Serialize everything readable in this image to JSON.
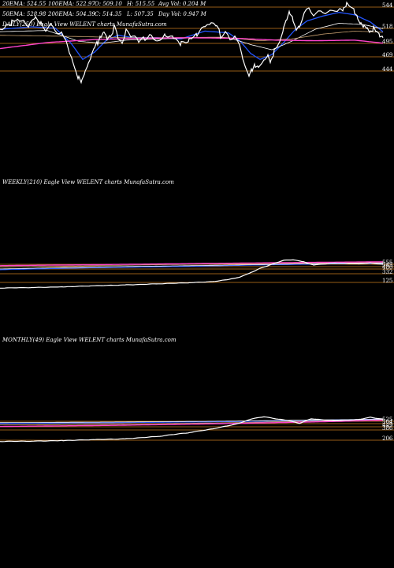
{
  "stats": {
    "row1": [
      "20EMA: 524.55",
      "100EMA: 522.97",
      "O: 509.10",
      "H: 515.55",
      "Avg Vol: 0.204  M"
    ],
    "row2": [
      "50EMA: 528.98",
      "200EMA: 504.39",
      "C: 514.35",
      "L: 507.35",
      "Day Vol: 0.947  M"
    ]
  },
  "colors": {
    "background": "#000000",
    "price": "#ffffff",
    "ema20": "#2255ff",
    "ema50": "#ffffff",
    "ema100": "#c8a070",
    "ema200": "#ff44cc",
    "level_line": "#c87a1e"
  },
  "chart_data": [
    {
      "type": "line",
      "title": "DAILY(250) Eagle  View  WELENT charts MunafaSutra.com",
      "y_tick_labels": [
        "544",
        "518",
        "495",
        "469",
        "444"
      ],
      "ylim": [
        430,
        570
      ],
      "x_count": 250,
      "series": [
        {
          "role": "price",
          "color": "#ffffff",
          "anchors": [
            [
              0,
              528
            ],
            [
              8,
              533
            ],
            [
              15,
              540
            ],
            [
              22,
              545
            ],
            [
              30,
              541
            ],
            [
              38,
              535
            ],
            [
              45,
              548
            ],
            [
              52,
              540
            ],
            [
              58,
              530
            ],
            [
              64,
              536
            ],
            [
              70,
              528
            ],
            [
              78,
              520
            ],
            [
              84,
              512
            ],
            [
              88,
              490
            ],
            [
              92,
              478
            ],
            [
              96,
              462
            ],
            [
              100,
              448
            ],
            [
              104,
              440
            ],
            [
              108,
              456
            ],
            [
              112,
              470
            ],
            [
              116,
              482
            ],
            [
              120,
              495
            ],
            [
              124,
              505
            ],
            [
              128,
              518
            ],
            [
              132,
              525
            ],
            [
              136,
              513
            ],
            [
              140,
              520
            ],
            [
              145,
              530
            ],
            [
              150,
              515
            ],
            [
              155,
              505
            ],
            [
              160,
              525
            ],
            [
              168,
              516
            ],
            [
              176,
              508
            ],
            [
              184,
              514
            ],
            [
              192,
              518
            ],
            [
              200,
              508
            ],
            [
              210,
              522
            ],
            [
              220,
              514
            ],
            [
              230,
              503
            ],
            [
              240,
              512
            ],
            [
              250,
              518
            ],
            [
              260,
              530
            ],
            [
              268,
              538
            ],
            [
              275,
              530
            ],
            [
              280,
              518
            ],
            [
              286,
              524
            ],
            [
              292,
              512
            ],
            [
              298,
              520
            ],
            [
              304,
              498
            ],
            [
              308,
              478
            ],
            [
              312,
              462
            ],
            [
              316,
              448
            ],
            [
              320,
              460
            ],
            [
              324,
              470
            ],
            [
              328,
              468
            ],
            [
              332,
              472
            ],
            [
              336,
              480
            ],
            [
              340,
              488
            ],
            [
              344,
              475
            ],
            [
              348,
              490
            ],
            [
              352,
              498
            ],
            [
              356,
              510
            ],
            [
              360,
              528
            ],
            [
              364,
              542
            ],
            [
              368,
              556
            ],
            [
              372,
              545
            ],
            [
              376,
              528
            ],
            [
              380,
              534
            ],
            [
              386,
              552
            ],
            [
              392,
              560
            ],
            [
              398,
              552
            ],
            [
              404,
              555
            ],
            [
              410,
              558
            ],
            [
              416,
              560
            ],
            [
              422,
              558
            ],
            [
              428,
              562
            ],
            [
              432,
              566
            ],
            [
              436,
              563
            ],
            [
              440,
              570
            ],
            [
              446,
              565
            ],
            [
              450,
              558
            ],
            [
              454,
              550
            ],
            [
              458,
              540
            ],
            [
              462,
              533
            ],
            [
              466,
              530
            ],
            [
              470,
              524
            ],
            [
              474,
              528
            ],
            [
              478,
              520
            ],
            [
              482,
              515
            ],
            [
              486,
              514
            ]
          ]
        },
        {
          "role": "ema20",
          "color": "#2255ff",
          "anchors": [
            [
              0,
              528
            ],
            [
              40,
              532
            ],
            [
              70,
              530
            ],
            [
              90,
              505
            ],
            [
              105,
              478
            ],
            [
              120,
              490
            ],
            [
              135,
              510
            ],
            [
              150,
              518
            ],
            [
              170,
              514
            ],
            [
              200,
              514
            ],
            [
              230,
              512
            ],
            [
              260,
              525
            ],
            [
              290,
              522
            ],
            [
              305,
              508
            ],
            [
              318,
              488
            ],
            [
              330,
              478
            ],
            [
              345,
              486
            ],
            [
              360,
              506
            ],
            [
              375,
              528
            ],
            [
              390,
              542
            ],
            [
              410,
              550
            ],
            [
              430,
              556
            ],
            [
              450,
              552
            ],
            [
              470,
              540
            ],
            [
              486,
              524
            ]
          ]
        },
        {
          "role": "ema50",
          "color": "#ffffff",
          "anchors": [
            [
              0,
              524
            ],
            [
              60,
              526
            ],
            [
              100,
              508
            ],
            [
              130,
              505
            ],
            [
              160,
              510
            ],
            [
              200,
              512
            ],
            [
              250,
              514
            ],
            [
              290,
              514
            ],
            [
              320,
              502
            ],
            [
              345,
              494
            ],
            [
              370,
              508
            ],
            [
              400,
              528
            ],
            [
              430,
              538
            ],
            [
              460,
              536
            ],
            [
              486,
              529
            ]
          ]
        },
        {
          "role": "ema100",
          "color": "#c8a070",
          "anchors": [
            [
              0,
              518
            ],
            [
              100,
              516
            ],
            [
              160,
              514
            ],
            [
              220,
              514
            ],
            [
              280,
              515
            ],
            [
              330,
              509
            ],
            [
              370,
              512
            ],
            [
              410,
              520
            ],
            [
              450,
              525
            ],
            [
              486,
              523
            ]
          ]
        },
        {
          "role": "ema200",
          "color": "#ff44cc",
          "anchors": [
            [
              0,
              496
            ],
            [
              60,
              506
            ],
            [
              120,
              511
            ],
            [
              180,
              513
            ],
            [
              240,
              514
            ],
            [
              300,
              513
            ],
            [
              350,
              510
            ],
            [
              400,
              509
            ],
            [
              450,
              510
            ],
            [
              486,
              505
            ]
          ]
        }
      ],
      "hlines": [
        544,
        518,
        495,
        469,
        444
      ]
    },
    {
      "type": "line",
      "title": "WEEKLY(210) Eagle  View  WELENT charts MunafaSutra.com",
      "y_tick_labels": [
        "555",
        "545",
        "480",
        "332",
        "125"
      ],
      "ylim": [
        60,
        620
      ],
      "x_count": 210,
      "series": [
        {
          "role": "price",
          "color": "#ffffff",
          "anchors": [
            [
              0,
              140
            ],
            [
              40,
              150
            ],
            [
              80,
              160
            ],
            [
              120,
              175
            ],
            [
              160,
              190
            ],
            [
              200,
              205
            ],
            [
              240,
              222
            ],
            [
              270,
              240
            ],
            [
              290,
              270
            ],
            [
              305,
              310
            ],
            [
              318,
              375
            ],
            [
              330,
              440
            ],
            [
              345,
              500
            ],
            [
              360,
              560
            ],
            [
              372,
              570
            ],
            [
              385,
              540
            ],
            [
              398,
              490
            ],
            [
              410,
              505
            ],
            [
              425,
              520
            ],
            [
              440,
              510
            ],
            [
              455,
              505
            ],
            [
              470,
              520
            ],
            [
              486,
              500
            ]
          ]
        },
        {
          "role": "ema20",
          "color": "#2255ff",
          "anchors": [
            [
              0,
              420
            ],
            [
              120,
              450
            ],
            [
              240,
              470
            ],
            [
              320,
              490
            ],
            [
              400,
              505
            ],
            [
              486,
              515
            ]
          ]
        },
        {
          "role": "ema50",
          "color": "#ffffff",
          "anchors": [
            [
              0,
              430
            ],
            [
              120,
              460
            ],
            [
              240,
              480
            ],
            [
              320,
              495
            ],
            [
              400,
              510
            ],
            [
              486,
              520
            ]
          ]
        },
        {
          "role": "ema100",
          "color": "#c8a070",
          "anchors": [
            [
              0,
              460
            ],
            [
              120,
              480
            ],
            [
              240,
              500
            ],
            [
              320,
              510
            ],
            [
              400,
              520
            ],
            [
              486,
              528
            ]
          ]
        },
        {
          "role": "ema200",
          "color": "#ff44cc",
          "anchors": [
            [
              0,
              480
            ],
            [
              120,
              495
            ],
            [
              240,
              510
            ],
            [
              320,
              520
            ],
            [
              400,
              530
            ],
            [
              486,
              538
            ]
          ]
        }
      ],
      "hlines": [
        555,
        545,
        480,
        332,
        125
      ]
    },
    {
      "type": "line",
      "title": "MONTHLY(49) Eagle  View  WELENT charts MunafaSutra.com",
      "y_tick_labels": [
        "525",
        "504",
        "449",
        "386",
        "206"
      ],
      "ylim": [
        150,
        600
      ],
      "x_count": 49,
      "series": [
        {
          "role": "price",
          "color": "#ffffff",
          "anchors": [
            [
              0,
              225
            ],
            [
              40,
              230
            ],
            [
              80,
              238
            ],
            [
              120,
              248
            ],
            [
              160,
              262
            ],
            [
              200,
              290
            ],
            [
              240,
              340
            ],
            [
              270,
              390
            ],
            [
              300,
              450
            ],
            [
              320,
              520
            ],
            [
              335,
              545
            ],
            [
              350,
              520
            ],
            [
              365,
              500
            ],
            [
              380,
              460
            ],
            [
              395,
              520
            ],
            [
              410,
              505
            ],
            [
              425,
              495
            ],
            [
              440,
              500
            ],
            [
              455,
              510
            ],
            [
              470,
              540
            ],
            [
              486,
              515
            ]
          ]
        },
        {
          "role": "ema20",
          "color": "#2255ff",
          "anchors": [
            [
              0,
              460
            ],
            [
              150,
              470
            ],
            [
              300,
              485
            ],
            [
              400,
              500
            ],
            [
              486,
              515
            ]
          ]
        },
        {
          "role": "ema50",
          "color": "#ffffff",
          "anchors": [
            [
              0,
              470
            ],
            [
              150,
              478
            ],
            [
              300,
              490
            ],
            [
              400,
              505
            ],
            [
              486,
              512
            ]
          ]
        },
        {
          "role": "ema100",
          "color": "#c8a070",
          "anchors": [
            [
              0,
              440
            ],
            [
              150,
              450
            ],
            [
              300,
              470
            ],
            [
              400,
              490
            ],
            [
              486,
              505
            ]
          ]
        },
        {
          "role": "ema200",
          "color": "#ff44cc",
          "anchors": [
            [
              0,
              420
            ],
            [
              150,
              435
            ],
            [
              300,
              460
            ],
            [
              400,
              480
            ],
            [
              486,
              500
            ]
          ]
        }
      ],
      "hlines": [
        525,
        504,
        449,
        386,
        206
      ]
    }
  ]
}
